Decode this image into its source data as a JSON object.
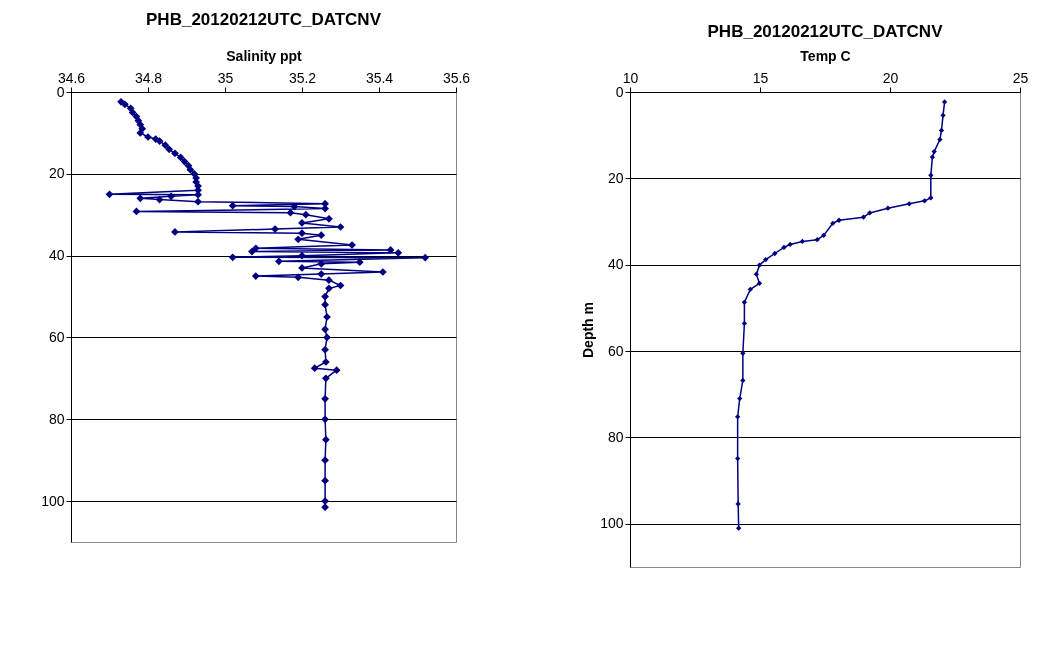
{
  "chart_data": [
    {
      "type": "line",
      "title": "PHB_20120212UTC_DATCNV",
      "xlabel": "Salinity ppt",
      "xlim": [
        34.6,
        35.6
      ],
      "xticks": [
        34.6,
        34.8,
        35,
        35.2,
        35.4,
        35.6
      ],
      "ylim": [
        110,
        0
      ],
      "yticks": [
        0,
        20,
        40,
        60,
        80,
        100
      ],
      "grid": "y",
      "marker": "diamond",
      "series": [
        {
          "color": "#000080",
          "x": [
            34.73,
            34.74,
            34.755,
            34.76,
            34.77,
            34.775,
            34.78,
            34.785,
            34.78,
            34.8,
            34.82,
            34.83,
            34.845,
            34.855,
            34.87,
            34.885,
            34.895,
            34.905,
            34.91,
            34.92,
            34.925,
            34.925,
            34.93,
            34.93,
            34.7,
            34.93,
            34.86,
            34.78,
            34.83,
            34.93,
            35.26,
            35.02,
            35.18,
            35.26,
            34.77,
            35.17,
            35.21,
            35.27,
            35.2,
            35.3,
            35.13,
            34.87,
            35.2,
            35.25,
            35.19,
            35.33,
            35.08,
            35.43,
            35.07,
            35.45,
            35.2,
            35.02,
            35.52,
            35.14,
            35.35,
            35.25,
            35.2,
            35.41,
            35.25,
            35.08,
            35.19,
            35.27,
            35.3,
            35.27,
            35.26,
            35.26,
            35.265,
            35.26,
            35.265,
            35.26,
            35.262,
            35.233,
            35.29,
            35.262,
            35.26,
            35.26,
            35.262,
            35.26,
            35.26,
            35.26,
            35.26
          ],
          "values": [
            2.4,
            3,
            4,
            5,
            6,
            7,
            8,
            9,
            10,
            11,
            11.5,
            12,
            13,
            14,
            15,
            16,
            17,
            18,
            19,
            20,
            21,
            22,
            23,
            24,
            25,
            25.1,
            25.5,
            26,
            26.3,
            26.8,
            27.3,
            27.8,
            28,
            28.5,
            29.2,
            29.5,
            30,
            31,
            32,
            33,
            33.5,
            34.2,
            34.5,
            35,
            36,
            37.4,
            38.2,
            38.6,
            39,
            39.3,
            40,
            40.4,
            40.5,
            41.4,
            41.6,
            42,
            43,
            44,
            44.5,
            45,
            45.3,
            46,
            47.3,
            48,
            50,
            52,
            55,
            58,
            60,
            63,
            66,
            67.5,
            68,
            70,
            75,
            80,
            85,
            90,
            95,
            100,
            101.5
          ]
        }
      ]
    },
    {
      "type": "line",
      "title": "PHB_20120212UTC_DATCNV",
      "xlabel": "Temp C",
      "ylabel": "Depth m",
      "xlim": [
        10,
        25
      ],
      "xticks": [
        10,
        15,
        20,
        25
      ],
      "ylim": [
        110,
        0
      ],
      "yticks": [
        0,
        20,
        40,
        60,
        80,
        100
      ],
      "grid": "y",
      "marker": "diamond",
      "series": [
        {
          "color": "#000080",
          "x": [
            22.1,
            22.04,
            21.98,
            21.92,
            21.7,
            21.63,
            21.57,
            21.57,
            21.33,
            20.74,
            19.92,
            19.22,
            18.98,
            18.04,
            17.8,
            17.45,
            17.2,
            16.63,
            16.16,
            15.92,
            15.57,
            15.22,
            14.98,
            14.86,
            14.98,
            14.63,
            14.4,
            14.4,
            14.34,
            14.34,
            14.22,
            14.14,
            14.14,
            14.16,
            14.18
          ],
          "values": [
            2.3,
            5.4,
            8.9,
            11,
            13.8,
            15.1,
            19.3,
            24.5,
            25.2,
            25.9,
            26.9,
            28,
            29,
            29.7,
            30.4,
            33.2,
            34.2,
            34.6,
            35.3,
            36,
            37.4,
            38.8,
            40.1,
            42.2,
            44.3,
            45.7,
            48.7,
            53.6,
            60.5,
            66.8,
            71,
            75.2,
            84.9,
            95.4,
            101
          ]
        }
      ]
    }
  ]
}
